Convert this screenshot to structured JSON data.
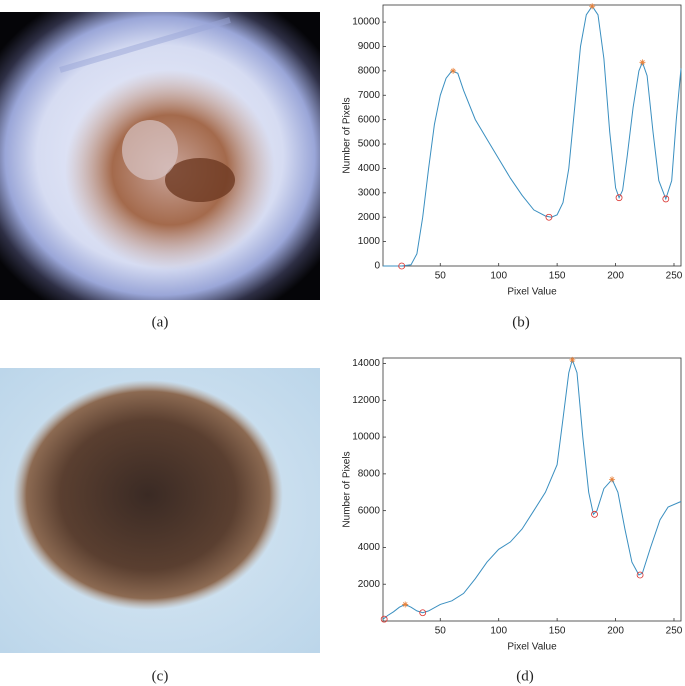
{
  "labels": [
    "(a)",
    "(b)",
    "(c)",
    "(d)"
  ],
  "chart_data": [
    {
      "type": "line",
      "xlabel": "Pixel Value",
      "ylabel": "Number of Pixels",
      "color": "#3a8fc0",
      "x": [
        1,
        10,
        17,
        25,
        30,
        35,
        40,
        45,
        50,
        55,
        60,
        65,
        70,
        80,
        90,
        100,
        110,
        120,
        130,
        140,
        145,
        150,
        155,
        160,
        165,
        170,
        175,
        180,
        185,
        190,
        195,
        200,
        203,
        206,
        210,
        215,
        220,
        223,
        227,
        232,
        237,
        243,
        248,
        252,
        256
      ],
      "values": [
        0,
        0,
        0,
        50,
        500,
        2000,
        4000,
        5800,
        7000,
        7700,
        8000,
        7900,
        7200,
        6000,
        5200,
        4400,
        3600,
        2900,
        2300,
        2050,
        2000,
        2100,
        2600,
        4000,
        6500,
        9000,
        10300,
        10650,
        10300,
        8500,
        5500,
        3200,
        2800,
        3100,
        4500,
        6500,
        8000,
        8350,
        7800,
        5500,
        3500,
        2750,
        3500,
        6000,
        8100
      ],
      "peaks_x": [
        61,
        180,
        223
      ],
      "peaks": [
        8000,
        10650,
        8350
      ],
      "minima_x": [
        17,
        143,
        203,
        243
      ],
      "minima": [
        0,
        2000,
        2800,
        2750
      ],
      "xlim": [
        1,
        256
      ],
      "ylim": [
        0,
        10700
      ],
      "xticks": [
        50,
        100,
        150,
        200,
        250
      ],
      "yticks": [
        0,
        1000,
        2000,
        3000,
        4000,
        5000,
        6000,
        7000,
        8000,
        9000,
        10000
      ]
    },
    {
      "type": "line",
      "xlabel": "Pixel Value",
      "ylabel": "Number of Pixels",
      "color": "#3a8fc0",
      "x": [
        1,
        5,
        10,
        15,
        20,
        25,
        30,
        35,
        40,
        50,
        60,
        70,
        80,
        90,
        100,
        110,
        120,
        130,
        140,
        150,
        155,
        160,
        163,
        167,
        172,
        177,
        181,
        184,
        190,
        197,
        202,
        208,
        214,
        220,
        223,
        230,
        238,
        245,
        256
      ],
      "values": [
        100,
        300,
        500,
        750,
        900,
        750,
        550,
        450,
        550,
        900,
        1100,
        1500,
        2300,
        3200,
        3900,
        4300,
        5000,
        6000,
        7000,
        8500,
        11000,
        13500,
        14200,
        13500,
        10000,
        7000,
        5800,
        6000,
        7200,
        7700,
        7000,
        5000,
        3200,
        2500,
        2600,
        4000,
        5500,
        6200,
        6500
      ],
      "peaks_x": [
        20,
        163,
        197
      ],
      "peaks": [
        900,
        14200,
        7700
      ],
      "minima_x": [
        2,
        35,
        182,
        221
      ],
      "minima": [
        100,
        450,
        5800,
        2500
      ],
      "xlim": [
        1,
        256
      ],
      "ylim": [
        0,
        14300
      ],
      "xticks": [
        50,
        100,
        150,
        200,
        250
      ],
      "yticks": [
        2000,
        4000,
        6000,
        8000,
        10000,
        12000,
        14000
      ]
    }
  ]
}
